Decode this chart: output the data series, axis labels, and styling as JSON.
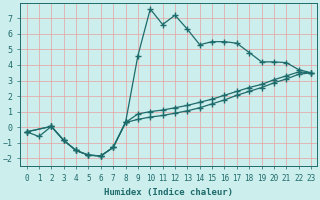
{
  "xlabel": "Humidex (Indice chaleur)",
  "bg_color": "#cceeed",
  "grid_color": "#e8a0a0",
  "line_color": "#1e6b6b",
  "xlim": [
    -0.5,
    23.5
  ],
  "ylim": [
    -2.5,
    8.0
  ],
  "xticks": [
    0,
    1,
    2,
    3,
    4,
    5,
    6,
    7,
    8,
    9,
    10,
    11,
    12,
    13,
    14,
    15,
    16,
    17,
    18,
    19,
    20,
    21,
    22,
    23
  ],
  "yticks": [
    -2,
    -1,
    0,
    1,
    2,
    3,
    4,
    5,
    6,
    7
  ],
  "line1_x": [
    0,
    1,
    2,
    3,
    4,
    5,
    6,
    7,
    8,
    9,
    10,
    11,
    12,
    13,
    14,
    15,
    16,
    17,
    18,
    19,
    20,
    21,
    22,
    23
  ],
  "line1_y": [
    -0.3,
    -0.6,
    0.05,
    -0.85,
    -1.5,
    -1.8,
    -1.85,
    -1.3,
    0.3,
    4.6,
    7.6,
    6.6,
    7.2,
    6.3,
    5.3,
    5.5,
    5.5,
    5.4,
    4.8,
    4.2,
    4.2,
    4.15,
    3.7,
    3.5
  ],
  "line2_x": [
    0,
    2,
    3,
    4,
    5,
    6,
    7,
    8,
    9,
    10,
    11,
    12,
    13,
    14,
    15,
    16,
    17,
    18,
    19,
    20,
    21,
    22,
    23
  ],
  "line2_y": [
    -0.3,
    0.05,
    -0.85,
    -1.5,
    -1.8,
    -1.85,
    -1.3,
    0.3,
    0.85,
    1.0,
    1.1,
    1.25,
    1.4,
    1.6,
    1.8,
    2.05,
    2.3,
    2.55,
    2.75,
    3.05,
    3.3,
    3.55,
    3.5
  ],
  "line3_x": [
    0,
    2,
    3,
    4,
    5,
    6,
    7,
    8,
    9,
    10,
    11,
    12,
    13,
    14,
    15,
    16,
    17,
    18,
    19,
    20,
    21,
    22,
    23
  ],
  "line3_y": [
    -0.3,
    0.05,
    -0.85,
    -1.5,
    -1.8,
    -1.85,
    -1.3,
    0.3,
    0.5,
    0.65,
    0.75,
    0.9,
    1.05,
    1.25,
    1.5,
    1.75,
    2.05,
    2.3,
    2.55,
    2.85,
    3.1,
    3.4,
    3.5
  ]
}
